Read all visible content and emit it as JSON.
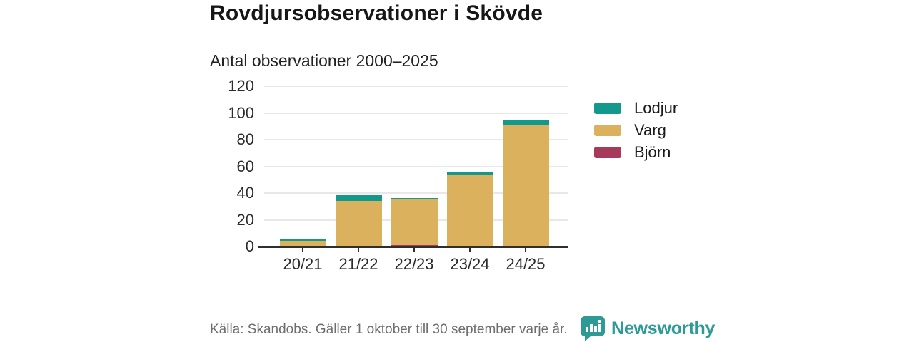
{
  "header": {
    "title": "Rovdjursobservationer i Skövde",
    "subtitle": "Antal observationer 2000–2025"
  },
  "footer": {
    "source_note": "Källa: Skandobs. Gäller 1 oktober till 30 september varje år."
  },
  "logo": {
    "text": "Newsworthy",
    "color": "#2d9a95"
  },
  "colors": {
    "lodjur": "#12998c",
    "varg": "#dcb15e",
    "bjorn": "#a73a5b",
    "axis": "#2f2f2f",
    "gridline": "#e8e8e8"
  },
  "chart_data": {
    "type": "bar",
    "stacked": true,
    "title": "Rovdjursobservationer i Skövde",
    "subtitle": "Antal observationer 2000–2025",
    "categories": [
      "20/21",
      "21/22",
      "22/23",
      "23/24",
      "24/25"
    ],
    "series": [
      {
        "name": "Lodjur",
        "color": "#12998c",
        "values": [
          1,
          4,
          1,
          3,
          3
        ]
      },
      {
        "name": "Varg",
        "color": "#dcb15e",
        "values": [
          4,
          34,
          34,
          53,
          91
        ]
      },
      {
        "name": "Björn",
        "color": "#a73a5b",
        "values": [
          0,
          0,
          1,
          0,
          0
        ]
      }
    ],
    "stack_order_bottom_to_top": [
      "Björn",
      "Varg",
      "Lodjur"
    ],
    "totals": [
      5,
      38,
      36,
      56,
      94
    ],
    "xlabel": "",
    "ylabel": "",
    "ylim": [
      0,
      120
    ],
    "yticks": [
      0,
      20,
      40,
      60,
      80,
      100,
      120
    ],
    "grid": "horizontal",
    "legend_position": "right"
  }
}
